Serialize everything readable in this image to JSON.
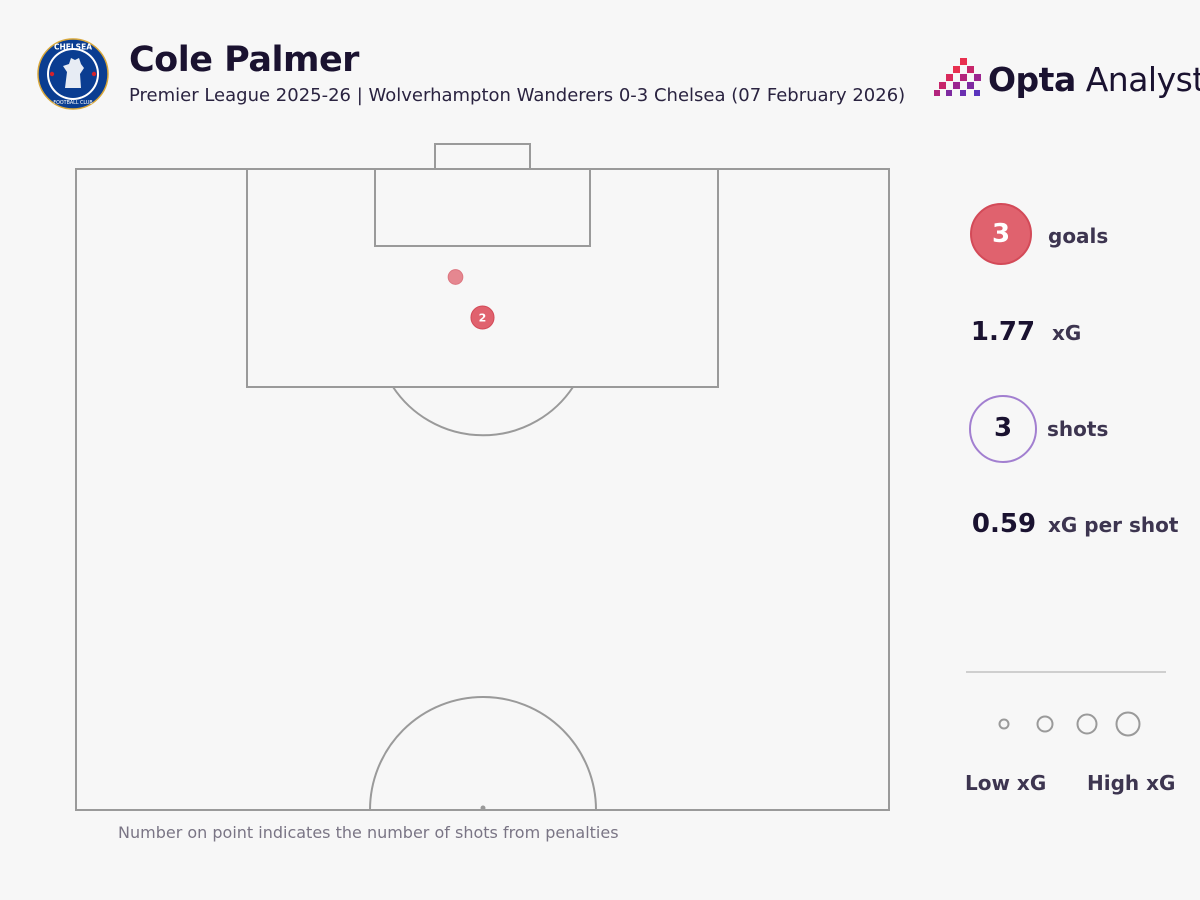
{
  "header": {
    "title": "Cole Palmer",
    "subtitle": "Premier League 2025-26 | Wolverhampton Wanderers 0-3 Chelsea (07 February 2026)",
    "crest_icon": "chelsea-crest-icon",
    "crest_text": "CHELSEA FOOTBALL CLUB",
    "logo_icon": "opta-analyst-logo-icon",
    "logo_bold": "Opta",
    "logo_light": "Analyst"
  },
  "stats": {
    "goals_value": "3",
    "goals_label": "goals",
    "xg_value": "1.77",
    "xg_label": "xG",
    "shots_value": "3",
    "shots_label": "shots",
    "xg_per_shot_value": "0.59",
    "xg_per_shot_label": "xG per shot"
  },
  "legend": {
    "low_label": "Low xG",
    "high_label": "High xG"
  },
  "footnote": "Number on point indicates the number of shots from penalties",
  "colors": {
    "goal": "#e0626e",
    "shot_outline": "#a27fd0",
    "pitch_line": "#9a9a9a",
    "background": "#f7f7f7"
  },
  "chart_data": {
    "type": "scatter",
    "title": "Cole Palmer",
    "pitch": "half-pitch shot map, attacking upward",
    "shots": [
      {
        "x_m_from_goal_line": 11,
        "y_offset_m": 0,
        "outcome": "goal",
        "penalty_count": 2,
        "xg": 0.79
      },
      {
        "x_m_from_goal_line": 8,
        "y_offset_m": -2,
        "outcome": "goal",
        "penalty_count": 0,
        "xg": 0.19
      }
    ]
  }
}
